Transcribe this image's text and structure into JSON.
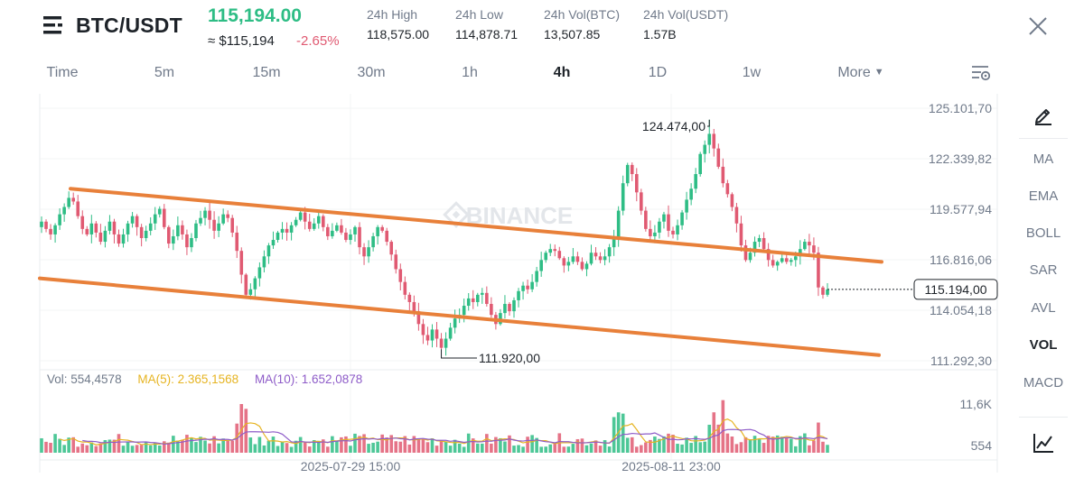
{
  "header": {
    "pair": "BTC/USDT",
    "last_price": "115,194.00",
    "approx_usd": "≈ $115,194",
    "change_pct": "-2.65%",
    "stats": [
      {
        "label": "24h High",
        "value": "118,575.00"
      },
      {
        "label": "24h Low",
        "value": "114,878.71"
      },
      {
        "label": "24h Vol(BTC)",
        "value": "13,507.85"
      },
      {
        "label": "24h Vol(USDT)",
        "value": "1.57B"
      }
    ],
    "icons": {
      "menu": "menu-lines-icon",
      "close": "close-icon"
    }
  },
  "timeframes": {
    "items": [
      "Time",
      "5m",
      "15m",
      "30m",
      "1h",
      "4h",
      "1D",
      "1w",
      "More"
    ],
    "selected": "4h",
    "settings_icon": "chart-settings-icon"
  },
  "indicators": {
    "items": [
      "MA",
      "EMA",
      "BOLL",
      "SAR",
      "AVL",
      "VOL",
      "MACD"
    ],
    "selected": "VOL",
    "icons": {
      "draw": "pencil-icon",
      "chart_type": "line-chart-icon"
    }
  },
  "volume_info": {
    "vol": "Vol: 554,4578",
    "ma5": "MA(5): 2.365,1568",
    "ma10": "MA(10): 1.652,0878"
  },
  "watermark": "BINANCE",
  "colors": {
    "up": "#2ebd85",
    "down": "#e05a72",
    "price_green": "#2ebd85",
    "change_red": "#e05a72",
    "channel": "#e8803a",
    "ma5": "#e6b422",
    "ma10": "#8e5cc8",
    "text_primary": "#1e2329",
    "text_secondary": "#707a8a"
  },
  "chart_data": {
    "type": "candlestick",
    "price_axis_labels": [
      "125.101,70",
      "122.339,82",
      "119.577,94",
      "116.816,06",
      "114.054,18",
      "111.292,30"
    ],
    "price_axis_values": [
      125101.7,
      122339.82,
      119577.94,
      116816.06,
      114054.18,
      111292.3
    ],
    "volume_axis_labels": [
      "11,6K",
      "554"
    ],
    "volume_axis_values": [
      11600,
      554
    ],
    "time_labels": [
      "2025-07-29 15:00",
      "2025-08-11 23:00"
    ],
    "current_price_label": "115.194,00",
    "current_price": 115194.0,
    "annotations": [
      {
        "label": "124.474,00",
        "value": 124474.0,
        "kind": "high"
      },
      {
        "label": "111.920,00",
        "value": 111920.0,
        "kind": "low"
      }
    ],
    "channel_lines": [
      {
        "name": "upper",
        "start": 120700,
        "end": 116700
      },
      {
        "name": "lower",
        "start": 115800,
        "end": 111600
      }
    ],
    "candle_count": 174,
    "closes": [
      118900,
      118500,
      118200,
      118700,
      119300,
      119700,
      120200,
      120000,
      119200,
      118500,
      118200,
      118800,
      118300,
      117800,
      118400,
      118900,
      118200,
      117700,
      118200,
      118800,
      119200,
      118600,
      118000,
      118400,
      118800,
      119300,
      119600,
      118600,
      117700,
      118100,
      118700,
      118200,
      117500,
      118000,
      118800,
      119100,
      119500,
      119000,
      118400,
      118800,
      119300,
      119100,
      118300,
      117300,
      116000,
      114900,
      115200,
      115800,
      116400,
      117000,
      117600,
      117900,
      118300,
      118500,
      118300,
      118700,
      119000,
      119400,
      118900,
      118500,
      118800,
      119200,
      118600,
      118100,
      118400,
      118700,
      118300,
      117900,
      118200,
      118600,
      117500,
      117000,
      117500,
      118100,
      118600,
      118400,
      117800,
      117100,
      116300,
      115600,
      114900,
      114500,
      114000,
      113300,
      112700,
      112400,
      113000,
      112500,
      112000,
      112500,
      113100,
      113600,
      113800,
      114300,
      114700,
      114500,
      114900,
      115000,
      114400,
      113800,
      113300,
      113900,
      114400,
      114000,
      114600,
      115100,
      115400,
      115200,
      115600,
      116200,
      116800,
      117200,
      117400,
      117300,
      116900,
      116500,
      116700,
      117000,
      116700,
      116300,
      116600,
      117200,
      117000,
      116800,
      117000,
      117500,
      118000,
      119500,
      121000,
      122000,
      121500,
      120500,
      119500,
      118500,
      118100,
      118300,
      118900,
      119300,
      118400,
      118200,
      118700,
      119400,
      120100,
      120700,
      121500,
      122600,
      123100,
      123700,
      122900,
      121900,
      121000,
      120400,
      119700,
      118800,
      117600,
      116800,
      117200,
      117800,
      118000,
      117400,
      116800,
      116500,
      116700,
      116900,
      116700,
      116800,
      117000,
      117400,
      117800,
      117600,
      117200,
      115300,
      114900,
      115194
    ],
    "volume_note": "volume bar heights are relative (0-1) to the 11,6K axis line"
  }
}
